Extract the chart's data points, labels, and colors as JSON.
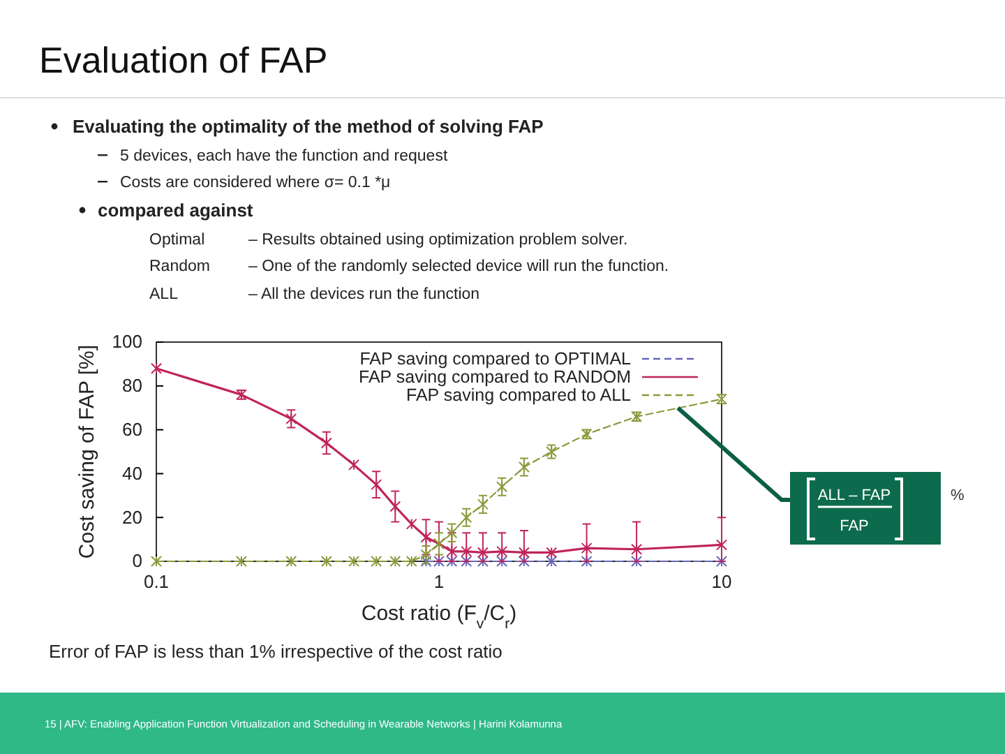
{
  "chart_data": {
    "type": "line",
    "title": "Evaluation of FAP",
    "xlabel": "Cost ratio (F$_{v}$/C$_{r}$)",
    "ylabel": "Cost saving of FAP [%]",
    "log": "x",
    "xlim": [
      0.1,
      10
    ],
    "xticks": [
      0.1,
      1,
      10
    ],
    "ylim": [
      0,
      100
    ],
    "yticks": [
      0,
      20,
      40,
      60,
      80,
      100
    ],
    "grid": false,
    "legend": "top right",
    "marker": "cross",
    "x": [
      0.1,
      0.2,
      0.3,
      0.4,
      0.5,
      0.6,
      0.7,
      0.8,
      0.9,
      1,
      1.11,
      1.25,
      1.43,
      1.67,
      2,
      2.5,
      3.33,
      5,
      10
    ],
    "series": [
      {
        "name": "FAP saving compared to OPTIMAL",
        "color": "#6666bb",
        "line_style": "dashed",
        "values": [
          null,
          null,
          null,
          null,
          null,
          null,
          null,
          null,
          0,
          0,
          0,
          0,
          0,
          0,
          0,
          0,
          0,
          0,
          0
        ]
      },
      {
        "name": "FAP saving compared to RANDOM",
        "color": "#c0245c",
        "line_style": "solid",
        "values": [
          88,
          76,
          65,
          54,
          44,
          35,
          25,
          17,
          11,
          8,
          4.5,
          4.5,
          4,
          4.5,
          4,
          4,
          6,
          5.5,
          7.5
        ],
        "errors": [
          null,
          2,
          4,
          5,
          null,
          6,
          7,
          null,
          [
            3,
            19
          ],
          [
            0,
            18
          ],
          [
            0,
            13
          ],
          [
            0,
            13
          ],
          [
            0,
            13
          ],
          [
            0,
            13
          ],
          [
            0,
            14
          ],
          null,
          [
            0,
            17
          ],
          [
            0,
            18
          ],
          [
            0,
            20
          ]
        ]
      },
      {
        "name": "FAP saving compared to ALL",
        "color": "#8a9a3a",
        "line_style": "dashed",
        "values": [
          0,
          0,
          0,
          0,
          0,
          0,
          0,
          0,
          3,
          8,
          13,
          20,
          26,
          34,
          43,
          50,
          58,
          66,
          74
        ],
        "errors": [
          null,
          null,
          null,
          null,
          null,
          null,
          null,
          null,
          4,
          5,
          4,
          4,
          4,
          4,
          4,
          3,
          2,
          2,
          2
        ]
      }
    ],
    "annotations": [
      {
        "text": "ALL – FAP",
        "x": 7,
        "y": 70
      },
      "FAP",
      "%",
      "Evaluating the optimality of the method of solving FAP",
      "5 devices, each have the function and request",
      "Costs are considered where  σ= 0.1 *μ",
      "compared against",
      "Optimal",
      "– Results obtained using optimization problem solver.",
      "Random",
      "– One of the randomly selected device will run the function.",
      "ALL",
      "– All the devices run the function",
      "Error of FAP is less than 1% irrespective of the cost ratio",
      "15  |  AFV: Enabling Application Function Virtualization and Scheduling in Wearable Networks  |  Harini Kolamunna"
    ]
  }
}
